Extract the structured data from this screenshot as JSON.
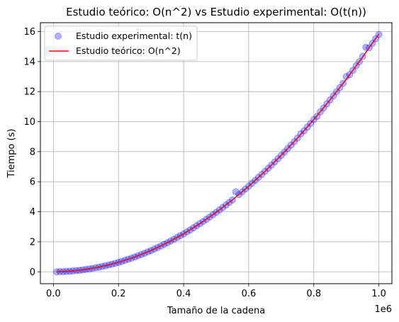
{
  "chart_data": {
    "type": "scatter",
    "title": "Estudio teórico: O(n^2) vs Estudio experimental: O(t(n))",
    "xlabel": "Tamaño de la cadena",
    "ylabel": "Tiempo (s)",
    "x_offset_text": "1e6",
    "x_scale": 1000000,
    "xlim": [
      -0.04,
      1.04
    ],
    "ylim": [
      -0.79,
      16.59
    ],
    "x_ticks": [
      0.0,
      0.2,
      0.4,
      0.6,
      0.8,
      1.0
    ],
    "x_tick_labels": [
      "0.0",
      "0.2",
      "0.4",
      "0.6",
      "0.8",
      "1.0"
    ],
    "y_ticks": [
      0,
      2,
      4,
      6,
      8,
      10,
      12,
      14,
      16
    ],
    "y_tick_labels": [
      "0",
      "2",
      "4",
      "6",
      "8",
      "10",
      "12",
      "14",
      "16"
    ],
    "grid": true,
    "legend_position": "upper-left",
    "series": [
      {
        "name": "Estudio experimental: t(n)",
        "kind": "scatter",
        "color": "#0000ff",
        "x": [
          0.01,
          0.02,
          0.03,
          0.04,
          0.05,
          0.06,
          0.07,
          0.08,
          0.09,
          0.1,
          0.11,
          0.12,
          0.13,
          0.14,
          0.15,
          0.16,
          0.17,
          0.18,
          0.19,
          0.2,
          0.21,
          0.22,
          0.23,
          0.24,
          0.25,
          0.26,
          0.27,
          0.28,
          0.29,
          0.3,
          0.31,
          0.32,
          0.33,
          0.34,
          0.35,
          0.36,
          0.37,
          0.38,
          0.39,
          0.4,
          0.41,
          0.42,
          0.43,
          0.44,
          0.45,
          0.46,
          0.47,
          0.48,
          0.49,
          0.5,
          0.51,
          0.52,
          0.53,
          0.54,
          0.55,
          0.56,
          0.57,
          0.58,
          0.59,
          0.6,
          0.61,
          0.62,
          0.63,
          0.64,
          0.65,
          0.66,
          0.67,
          0.68,
          0.69,
          0.7,
          0.71,
          0.72,
          0.73,
          0.74,
          0.75,
          0.76,
          0.77,
          0.78,
          0.79,
          0.8,
          0.81,
          0.82,
          0.83,
          0.84,
          0.85,
          0.86,
          0.87,
          0.88,
          0.89,
          0.9,
          0.91,
          0.92,
          0.93,
          0.94,
          0.95,
          0.96,
          0.97,
          0.98,
          0.99,
          1.0
        ],
        "y": [
          0.0,
          0.01,
          0.01,
          0.03,
          0.04,
          0.06,
          0.08,
          0.1,
          0.13,
          0.16,
          0.19,
          0.23,
          0.27,
          0.31,
          0.36,
          0.4,
          0.46,
          0.51,
          0.57,
          0.63,
          0.7,
          0.77,
          0.84,
          0.91,
          0.99,
          1.07,
          1.15,
          1.24,
          1.33,
          1.42,
          1.52,
          1.62,
          1.72,
          1.83,
          1.94,
          2.05,
          2.17,
          2.29,
          2.41,
          2.53,
          2.66,
          2.79,
          2.93,
          3.07,
          3.21,
          3.35,
          3.5,
          3.65,
          3.8,
          3.96,
          4.12,
          4.28,
          4.45,
          4.62,
          4.79,
          5.33,
          5.15,
          5.33,
          5.52,
          5.71,
          5.9,
          6.09,
          6.29,
          6.49,
          6.69,
          6.9,
          7.11,
          7.32,
          7.54,
          7.76,
          7.98,
          8.21,
          8.44,
          8.67,
          8.91,
          9.19,
          9.39,
          9.64,
          9.88,
          10.14,
          10.35,
          10.65,
          10.91,
          11.18,
          11.45,
          11.72,
          12.0,
          12.27,
          12.56,
          13.0,
          13.13,
          13.42,
          13.72,
          14.0,
          14.35,
          14.95,
          14.92,
          15.22,
          15.52,
          15.8
        ]
      },
      {
        "name": "Estudio teórico: O(n^2)",
        "kind": "line",
        "color": "#ff0000",
        "x": [
          0.01,
          0.05,
          0.1,
          0.15,
          0.2,
          0.25,
          0.3,
          0.35,
          0.4,
          0.45,
          0.5,
          0.55,
          0.6,
          0.65,
          0.7,
          0.75,
          0.8,
          0.85,
          0.9,
          0.95,
          1.0
        ],
        "y": [
          0.0,
          0.04,
          0.16,
          0.36,
          0.63,
          0.99,
          1.42,
          1.94,
          2.53,
          3.21,
          3.96,
          4.79,
          5.7,
          6.69,
          7.76,
          8.91,
          10.14,
          11.45,
          12.83,
          14.3,
          15.84
        ]
      }
    ]
  }
}
